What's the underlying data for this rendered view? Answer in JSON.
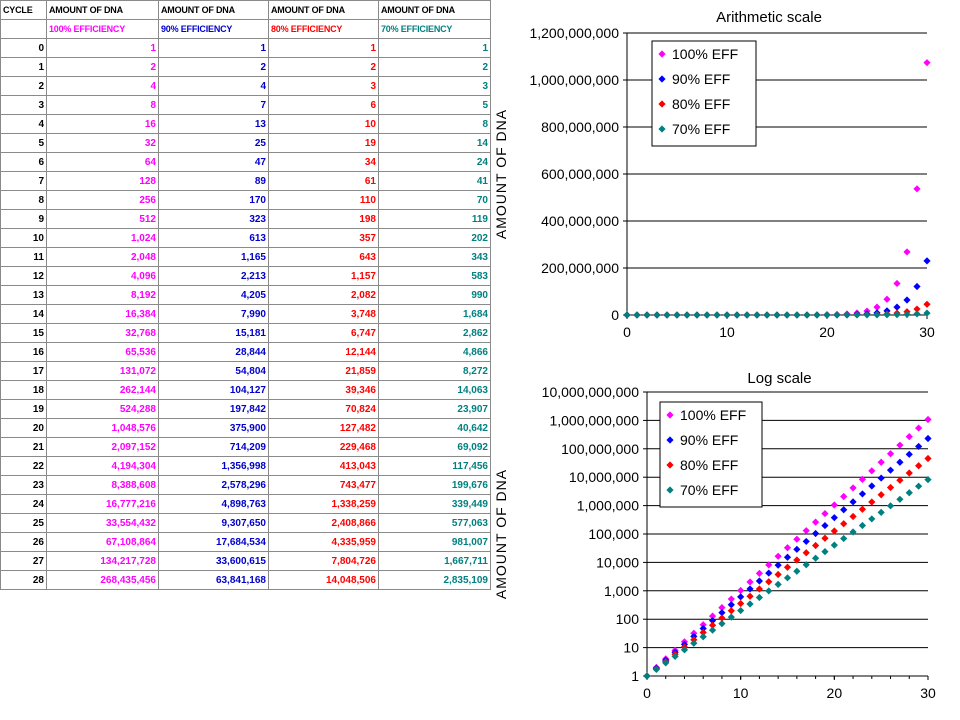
{
  "table": {
    "header": [
      "CYCLE",
      "AMOUNT OF DNA",
      "AMOUNT OF DNA",
      "AMOUNT OF DNA",
      "AMOUNT OF DNA"
    ],
    "subheader": [
      "",
      "100% EFFICIENCY",
      "90% EFFICIENCY",
      "80% EFFICIENCY",
      "70% EFFICIENCY"
    ],
    "colors": [
      "#000000",
      "#ff00ff",
      "#0000cc",
      "#ff0000",
      "#008080"
    ],
    "rows": [
      [
        "0",
        "1",
        "1",
        "1",
        "1"
      ],
      [
        "1",
        "2",
        "2",
        "2",
        "2"
      ],
      [
        "2",
        "4",
        "4",
        "3",
        "3"
      ],
      [
        "3",
        "8",
        "7",
        "6",
        "5"
      ],
      [
        "4",
        "16",
        "13",
        "10",
        "8"
      ],
      [
        "5",
        "32",
        "25",
        "19",
        "14"
      ],
      [
        "6",
        "64",
        "47",
        "34",
        "24"
      ],
      [
        "7",
        "128",
        "89",
        "61",
        "41"
      ],
      [
        "8",
        "256",
        "170",
        "110",
        "70"
      ],
      [
        "9",
        "512",
        "323",
        "198",
        "119"
      ],
      [
        "10",
        "1,024",
        "613",
        "357",
        "202"
      ],
      [
        "11",
        "2,048",
        "1,165",
        "643",
        "343"
      ],
      [
        "12",
        "4,096",
        "2,213",
        "1,157",
        "583"
      ],
      [
        "13",
        "8,192",
        "4,205",
        "2,082",
        "990"
      ],
      [
        "14",
        "16,384",
        "7,990",
        "3,748",
        "1,684"
      ],
      [
        "15",
        "32,768",
        "15,181",
        "6,747",
        "2,862"
      ],
      [
        "16",
        "65,536",
        "28,844",
        "12,144",
        "4,866"
      ],
      [
        "17",
        "131,072",
        "54,804",
        "21,859",
        "8,272"
      ],
      [
        "18",
        "262,144",
        "104,127",
        "39,346",
        "14,063"
      ],
      [
        "19",
        "524,288",
        "197,842",
        "70,824",
        "23,907"
      ],
      [
        "20",
        "1,048,576",
        "375,900",
        "127,482",
        "40,642"
      ],
      [
        "21",
        "2,097,152",
        "714,209",
        "229,468",
        "69,092"
      ],
      [
        "22",
        "4,194,304",
        "1,356,998",
        "413,043",
        "117,456"
      ],
      [
        "23",
        "8,388,608",
        "2,578,296",
        "743,477",
        "199,676"
      ],
      [
        "24",
        "16,777,216",
        "4,898,763",
        "1,338,259",
        "339,449"
      ],
      [
        "25",
        "33,554,432",
        "9,307,650",
        "2,408,866",
        "577,063"
      ],
      [
        "26",
        "67,108,864",
        "17,684,534",
        "4,335,959",
        "981,007"
      ],
      [
        "27",
        "134,217,728",
        "33,600,615",
        "7,804,726",
        "1,667,711"
      ],
      [
        "28",
        "268,435,456",
        "63,841,168",
        "14,048,506",
        "2,835,109"
      ]
    ]
  },
  "chart_data": [
    {
      "type": "scatter",
      "title": "Arithmetic scale",
      "ylabel": "AMOUNT OF DNA",
      "xlabel": "",
      "xlim": [
        0,
        30
      ],
      "ylim": [
        0,
        1200000000
      ],
      "xticks": [
        "0",
        "10",
        "20",
        "30"
      ],
      "yticks": [
        "0",
        "200,000,000",
        "400,000,000",
        "600,000,000",
        "800,000,000",
        "1,000,000,000",
        "1,200,000,000"
      ],
      "yscale": "linear",
      "grid": "horizontal",
      "legend_position": "top-left",
      "series": [
        {
          "name": "100% EFF",
          "color": "#ff00ff",
          "marker": "diamond",
          "efficiency": 1.0
        },
        {
          "name": "90% EFF",
          "color": "#0000ff",
          "marker": "diamond",
          "efficiency": 0.9
        },
        {
          "name": "80% EFF",
          "color": "#ff0000",
          "marker": "diamond",
          "efficiency": 0.8
        },
        {
          "name": "70% EFF",
          "color": "#008080",
          "marker": "diamond",
          "efficiency": 0.7
        }
      ],
      "x": [
        0,
        1,
        2,
        3,
        4,
        5,
        6,
        7,
        8,
        9,
        10,
        11,
        12,
        13,
        14,
        15,
        16,
        17,
        18,
        19,
        20,
        21,
        22,
        23,
        24,
        25,
        26,
        27,
        28,
        29,
        30
      ]
    },
    {
      "type": "scatter",
      "title": "Log scale",
      "ylabel": "AMOUNT OF DNA",
      "xlabel": "",
      "xlim": [
        0,
        30
      ],
      "ylim": [
        1,
        10000000000
      ],
      "xticks": [
        "0",
        "10",
        "20",
        "30"
      ],
      "yticks": [
        "1",
        "10",
        "100",
        "1,000",
        "10,000",
        "100,000",
        "1,000,000",
        "10,000,000",
        "100,000,000",
        "1,000,000,000",
        "10,000,000,000"
      ],
      "yscale": "log",
      "grid": "horizontal",
      "legend_position": "top-left",
      "series": [
        {
          "name": "100% EFF",
          "color": "#ff00ff",
          "marker": "diamond",
          "efficiency": 1.0
        },
        {
          "name": "90% EFF",
          "color": "#0000ff",
          "marker": "diamond",
          "efficiency": 0.9
        },
        {
          "name": "80% EFF",
          "color": "#ff0000",
          "marker": "diamond",
          "efficiency": 0.8
        },
        {
          "name": "70% EFF",
          "color": "#008080",
          "marker": "diamond",
          "efficiency": 0.7
        }
      ],
      "x": [
        0,
        1,
        2,
        3,
        4,
        5,
        6,
        7,
        8,
        9,
        10,
        11,
        12,
        13,
        14,
        15,
        16,
        17,
        18,
        19,
        20,
        21,
        22,
        23,
        24,
        25,
        26,
        27,
        28,
        29,
        30
      ]
    }
  ]
}
